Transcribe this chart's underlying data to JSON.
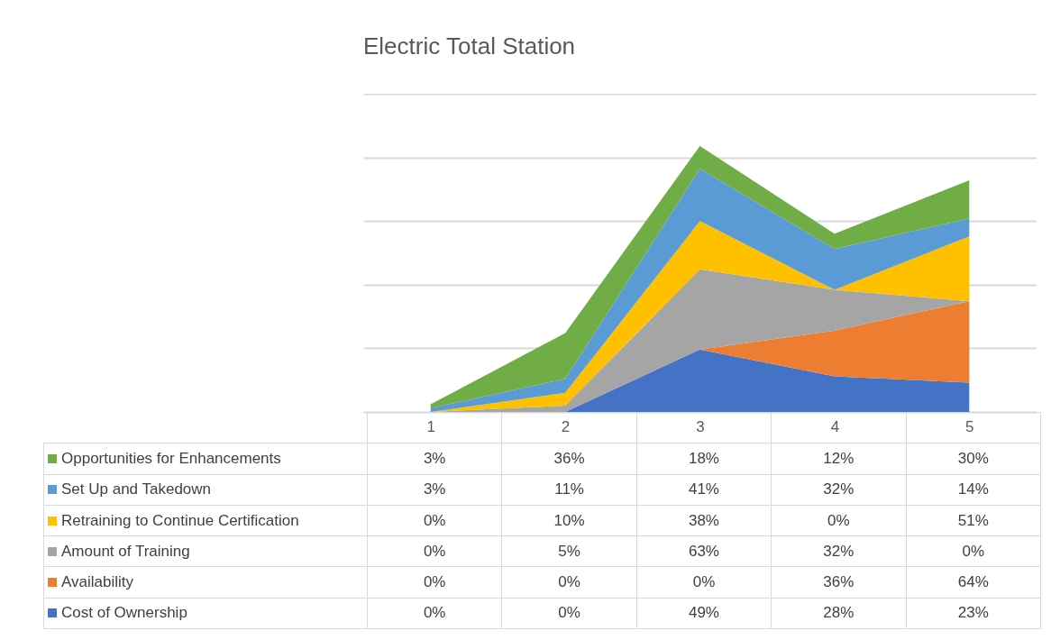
{
  "chart_data": {
    "type": "area",
    "title": "Electric Total Station",
    "stacked": true,
    "categories": [
      "1",
      "2",
      "3",
      "4",
      "5"
    ],
    "ylim": [
      0,
      250
    ],
    "yticks": [
      {
        "value": 0,
        "label": null
      },
      {
        "value": 50,
        "label": null
      },
      {
        "value": 100,
        "label": null
      },
      {
        "value": 150,
        "label": null
      },
      {
        "value": 200,
        "label": null
      },
      {
        "value": 250,
        "label": null
      }
    ],
    "tick_labels": "x",
    "grid": "y",
    "legend": "bottom",
    "series": [
      {
        "name": "Cost of Ownership",
        "color": "#4472c4",
        "values": [
          0,
          0,
          49,
          28,
          23
        ],
        "value_labels": [
          "0%",
          "0%",
          "49%",
          "28%",
          "23%"
        ]
      },
      {
        "name": "Availability",
        "color": "#ed7d31",
        "values": [
          0,
          0,
          0,
          36,
          64
        ],
        "value_labels": [
          "0%",
          "0%",
          "0%",
          "36%",
          "64%"
        ]
      },
      {
        "name": "Amount of Training",
        "color": "#a5a5a5",
        "values": [
          0,
          5,
          63,
          32,
          0
        ],
        "value_labels": [
          "0%",
          "5%",
          "63%",
          "32%",
          "0%"
        ]
      },
      {
        "name": "Retraining to Continue Certification",
        "color": "#ffc000",
        "values": [
          0,
          10,
          38,
          0,
          51
        ],
        "value_labels": [
          "0%",
          "10%",
          "38%",
          "0%",
          "51%"
        ]
      },
      {
        "name": "Set Up and Takedown",
        "color": "#5b9bd5",
        "values": [
          3,
          11,
          41,
          32,
          14
        ],
        "value_labels": [
          "3%",
          "11%",
          "41%",
          "32%",
          "14%"
        ]
      },
      {
        "name": "Opportunities for Enhancements",
        "color": "#70ad47",
        "values": [
          3,
          36,
          18,
          12,
          30
        ],
        "value_labels": [
          "3%",
          "36%",
          "18%",
          "12%",
          "30%"
        ]
      }
    ]
  }
}
